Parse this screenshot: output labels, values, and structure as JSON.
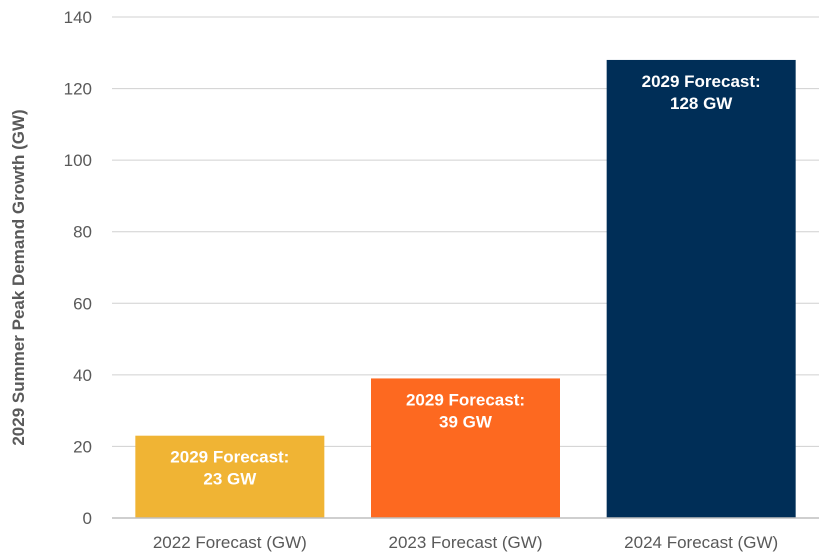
{
  "chart_data": {
    "type": "bar",
    "categories": [
      "2022 Forecast (GW)",
      "2023 Forecast (GW)",
      "2024 Forecast (GW)"
    ],
    "values": [
      23,
      39,
      128
    ],
    "data_labels": [
      [
        "2029 Forecast:",
        "23 GW"
      ],
      [
        "2029 Forecast:",
        "39 GW"
      ],
      [
        "2029 Forecast:",
        "128 GW"
      ]
    ],
    "colors": [
      "#f0b434",
      "#fd6920",
      "#002e57"
    ],
    "title": "",
    "xlabel": "",
    "ylabel": "2029 Summer Peak Demand Growth (GW)",
    "ylim": [
      0,
      140
    ],
    "yticks": [
      0,
      20,
      40,
      60,
      80,
      100,
      120,
      140
    ],
    "grid": true,
    "legend": "none"
  }
}
